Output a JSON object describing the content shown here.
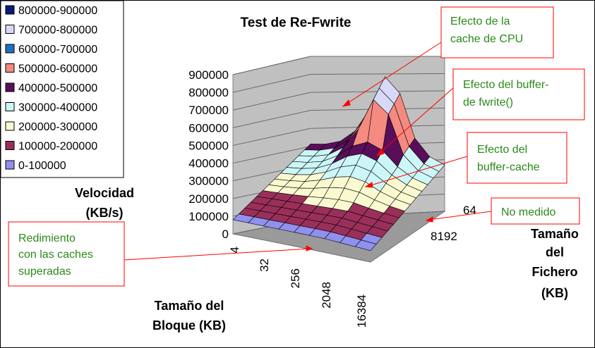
{
  "chart_data": {
    "type": "surface3d",
    "title": "Test de Re-Fwrite",
    "z_axis": {
      "label_line1": "Velocidad",
      "label_line2": "(KB/s)",
      "ticks": [
        "900000",
        "800000",
        "700000",
        "600000",
        "500000",
        "400000",
        "300000",
        "200000",
        "100000",
        "0"
      ],
      "range": [
        0,
        900000
      ]
    },
    "x_axis": {
      "label_line1": "Tamaño del",
      "label_line2": "Bloque (KB)",
      "ticks": [
        "4",
        "32",
        "256",
        "2048",
        "16384"
      ]
    },
    "y_axis": {
      "label_line1": "Tamaño",
      "label_line2": "del",
      "label_line3": "Fichero",
      "label_line4": "(KB)",
      "ticks": [
        "64",
        "8192"
      ]
    },
    "legend": {
      "position": "top-left",
      "entries": [
        {
          "label": "800000-900000",
          "color": "#0a1a7a"
        },
        {
          "label": "700000-800000",
          "color": "#d8d8f8"
        },
        {
          "label": "600000-700000",
          "color": "#1f6fc4"
        },
        {
          "label": "500000-600000",
          "color": "#f48a80"
        },
        {
          "label": "400000-500000",
          "color": "#5a0e5a"
        },
        {
          "label": "300000-400000",
          "color": "#ccf6f8"
        },
        {
          "label": "200000-300000",
          "color": "#fafad0"
        },
        {
          "label": "100000-200000",
          "color": "#9a2f5a"
        },
        {
          "label": "0-100000",
          "color": "#9090ee"
        }
      ]
    },
    "annotations": [
      {
        "line1": "Efecto de la",
        "line2": "cache de CPU"
      },
      {
        "line1": "Efecto del buffer-",
        "line2": "de fwrite()"
      },
      {
        "line1": "Efecto del",
        "line2": "buffer-cache"
      },
      {
        "line1": "No medido",
        "line2": ""
      },
      {
        "line1": "Redimiento",
        "line2": "con las caches",
        "line3": "superadas"
      }
    ]
  }
}
